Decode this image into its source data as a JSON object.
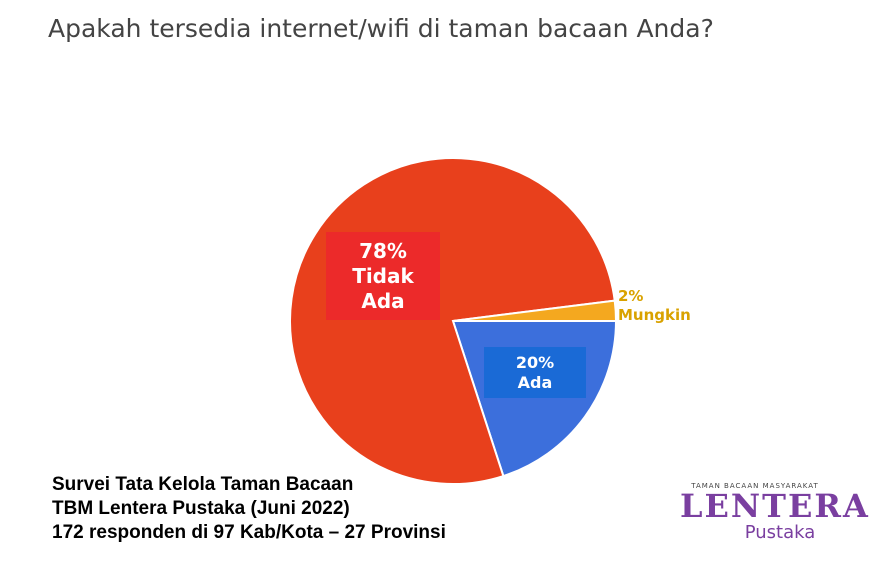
{
  "chart_data": {
    "type": "pie",
    "title": "Apakah tersedia internet/wifi di taman bacaan Anda?",
    "categories": [
      "Ada",
      "Tidak Ada",
      "Mungkin"
    ],
    "values": [
      20,
      78,
      2
    ],
    "value_labels": [
      "20%",
      "78%",
      "2%"
    ],
    "colors": [
      "#3c6fdc",
      "#e8401c",
      "#f4a81f"
    ]
  },
  "footer": {
    "lines": [
      "Survei Tata Kelola Taman Bacaan",
      "TBM Lentera Pustaka (Juni 2022)",
      "172 responden di 97 Kab/Kota – 27 Provinsi"
    ]
  },
  "logo": {
    "tagline": "TAMAN BACAAN MASYARAKAT",
    "name": "LENTERA",
    "subname": "Pustaka"
  }
}
